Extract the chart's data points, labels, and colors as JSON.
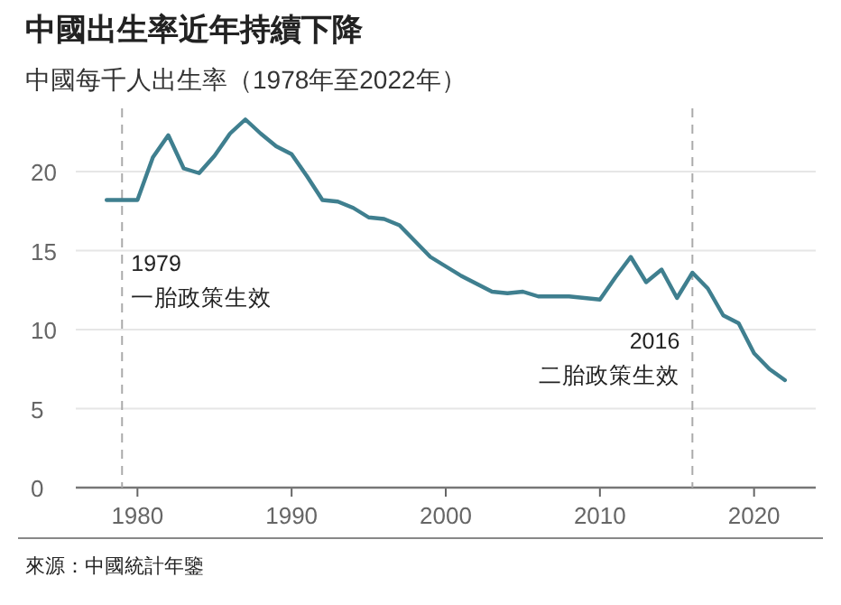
{
  "chart_data": {
    "type": "line",
    "title": "中國出生率近年持續下降",
    "subtitle": "中國每千人出生率（1978年至2022年）",
    "x": [
      1978,
      1979,
      1980,
      1981,
      1982,
      1983,
      1984,
      1985,
      1986,
      1987,
      1988,
      1989,
      1990,
      1991,
      1992,
      1993,
      1994,
      1995,
      1996,
      1997,
      1998,
      1999,
      2000,
      2001,
      2002,
      2003,
      2004,
      2005,
      2006,
      2007,
      2008,
      2009,
      2010,
      2011,
      2012,
      2013,
      2014,
      2015,
      2016,
      2017,
      2018,
      2019,
      2020,
      2021,
      2022
    ],
    "series": [
      {
        "color": "#3f7f8f",
        "values": [
          18.2,
          18.2,
          18.2,
          20.9,
          22.3,
          20.2,
          19.9,
          21.0,
          22.4,
          23.3,
          22.4,
          21.6,
          21.1,
          19.7,
          18.2,
          18.1,
          17.7,
          17.1,
          17.0,
          16.6,
          15.6,
          14.6,
          14.0,
          13.4,
          12.9,
          12.4,
          12.3,
          12.4,
          12.1,
          12.1,
          12.1,
          12.0,
          11.9,
          13.3,
          14.6,
          13.0,
          13.8,
          12.0,
          13.6,
          12.6,
          10.9,
          10.4,
          8.5,
          7.5,
          6.8
        ]
      }
    ],
    "xlim": [
      1976,
      2024
    ],
    "ylim": [
      0,
      24
    ],
    "xticks": [
      1980,
      1990,
      2000,
      2010,
      2020
    ],
    "yticks": [
      0,
      5,
      10,
      15,
      20
    ],
    "grid": "y",
    "ref_lines": [
      {
        "axis": "x",
        "value": 1979,
        "label": "1979\n一胎政策生效",
        "line_style": "dashed"
      },
      {
        "axis": "x",
        "value": 2016,
        "label": "2016\n二胎政策生效",
        "line_style": "dashed"
      }
    ],
    "annotations": [
      "來源：中國統計年鑒"
    ]
  }
}
